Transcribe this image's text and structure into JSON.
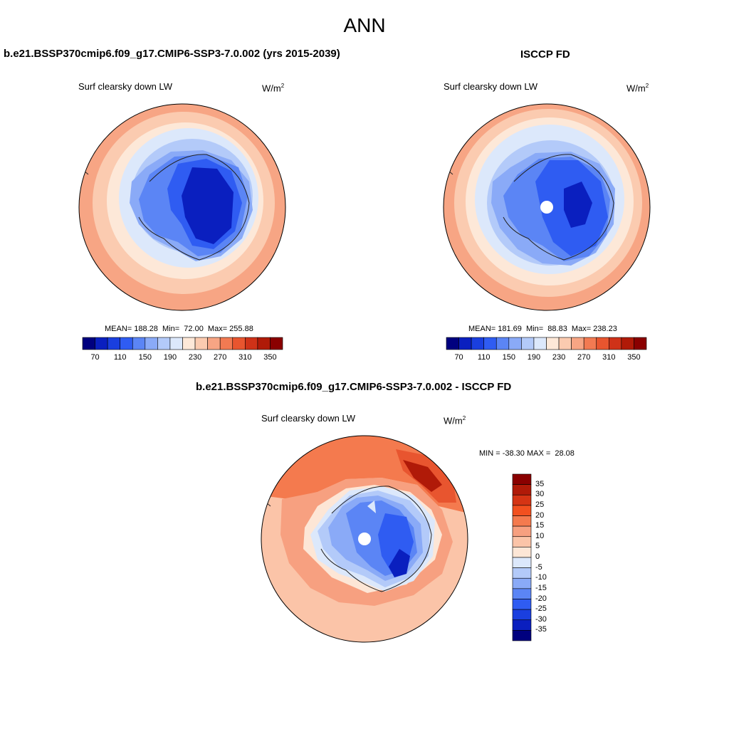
{
  "main_title": "ANN",
  "panels": [
    {
      "title": "b.e21.BSSP370cmip6.f09_g17.CMIP6-SSP3-7.0.002 (yrs 2015-2039)",
      "variable": "Surf clearsky down LW",
      "units_base": "W/m",
      "units_exp": "2",
      "stats": "MEAN= 188.28  Min=  72.00  Max= 255.88"
    },
    {
      "title": "ISCCP FD",
      "variable": "Surf clearsky down LW",
      "units_base": "W/m",
      "units_exp": "2",
      "stats": "MEAN= 181.69  Min=  88.83  Max= 238.23"
    },
    {
      "title": "b.e21.BSSP370cmip6.f09_g17.CMIP6-SSP3-7.0.002 - ISCCP FD",
      "variable": "Surf clearsky down LW",
      "units_base": "W/m",
      "units_exp": "2",
      "stats": "MIN = -38.30 MAX =  28.08"
    }
  ],
  "colorbar_top": {
    "colors": [
      "#00007f",
      "#0a1fbf",
      "#1a3fdf",
      "#2f5cf2",
      "#5b85f5",
      "#8aaaf7",
      "#b3caf9",
      "#dce8fb",
      "#fde8d8",
      "#fbcbb0",
      "#f7a584",
      "#f27a52",
      "#e8552f",
      "#cf3218",
      "#b01a08",
      "#8a0000"
    ],
    "labels": [
      "70",
      "110",
      "150",
      "190",
      "230",
      "270",
      "310",
      "350"
    ]
  },
  "colorbar_diff": {
    "colors": [
      "#8a0000",
      "#b01a08",
      "#d53414",
      "#f2501f",
      "#f47a4e",
      "#f7a080",
      "#fbc4a8",
      "#fde6d6",
      "#dce8fb",
      "#b3caf9",
      "#8aaaf7",
      "#5b85f5",
      "#2f5cf2",
      "#1a3fdf",
      "#0a1fbf",
      "#00007f"
    ],
    "labels": [
      "35",
      "30",
      "25",
      "20",
      "15",
      "10",
      "5",
      "0",
      "-5",
      "-10",
      "-15",
      "-20",
      "-25",
      "-30",
      "-35"
    ]
  }
}
